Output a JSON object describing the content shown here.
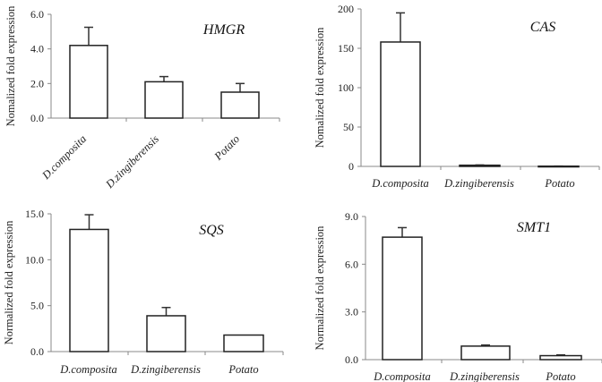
{
  "chart_data": [
    {
      "type": "bar",
      "title": "HMGR",
      "ylabel": "Nomalized fold expression",
      "xlabel": "",
      "categories": [
        "D.composita",
        "D.zingiberensis",
        "Potato"
      ],
      "values": [
        4.2,
        2.1,
        1.5
      ],
      "error_upper": [
        5.25,
        2.4,
        2.0
      ],
      "ylim": [
        0,
        6
      ],
      "yticks": [
        "0.0",
        "2.0",
        "4.0",
        "6.0"
      ],
      "ytick_values": [
        0,
        2,
        4,
        6
      ]
    },
    {
      "type": "bar",
      "title": "CAS",
      "ylabel": "Nomalized fold expression",
      "xlabel": "",
      "categories": [
        "D.composita",
        "D.zingiberensis",
        "Potato"
      ],
      "values": [
        158,
        1.5,
        0.3
      ],
      "error_upper": [
        195,
        1.8,
        0.4
      ],
      "ylim": [
        0,
        200
      ],
      "yticks": [
        "0",
        "50",
        "100",
        "150",
        "200"
      ],
      "ytick_values": [
        0,
        50,
        100,
        150,
        200
      ]
    },
    {
      "type": "bar",
      "title": "SQS",
      "ylabel": "Normalized fold expression",
      "xlabel": "",
      "categories": [
        "D.composita",
        "D.zingiberensis",
        "Potato"
      ],
      "values": [
        13.3,
        3.9,
        1.8
      ],
      "error_upper": [
        14.9,
        4.8,
        1.8
      ],
      "ylim": [
        0,
        15
      ],
      "yticks": [
        "0.0",
        "5.0",
        "10.0",
        "15.0"
      ],
      "ytick_values": [
        0,
        5,
        10,
        15
      ]
    },
    {
      "type": "bar",
      "title": "SMT1",
      "ylabel": "Normalized fold expression",
      "xlabel": "",
      "categories": [
        "D.composita",
        "D.zingiberensis",
        "Potato"
      ],
      "values": [
        7.7,
        0.85,
        0.25
      ],
      "error_upper": [
        8.3,
        0.92,
        0.3
      ],
      "ylim": [
        0,
        9
      ],
      "yticks": [
        "0.0",
        "3.0",
        "6.0",
        "9.0"
      ],
      "ytick_values": [
        0,
        3,
        6,
        9
      ]
    }
  ]
}
